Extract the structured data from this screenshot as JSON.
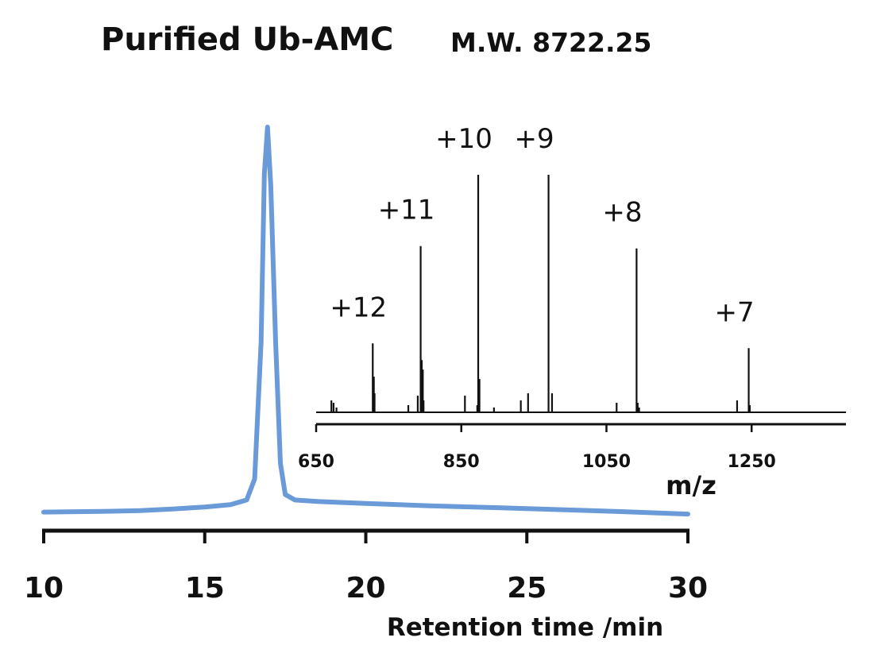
{
  "title": "Purified Ub-AMC",
  "subtitle": "M.W. 8722.25",
  "colors": {
    "chromatogram": "#6a9bd8",
    "spectrum": "#111111",
    "axis": "#111111"
  },
  "chart_data": [
    {
      "type": "line",
      "name": "chromatogram",
      "xlabel": "Retention time /min",
      "ylabel": "",
      "xlim": [
        10,
        30
      ],
      "ylim": [
        0,
        100
      ],
      "xticks": [
        10,
        15,
        20,
        25,
        30
      ],
      "xtick_labels": [
        "10",
        "15",
        "20",
        "25",
        "30"
      ],
      "series": [
        {
          "x": [
            10,
            11,
            12,
            13,
            14,
            15,
            15.8,
            16.3,
            16.55,
            16.75,
            16.85,
            16.95,
            17.05,
            17.2,
            17.35,
            17.5,
            17.8,
            18.5,
            20,
            22,
            25,
            28,
            30
          ],
          "y": [
            1.5,
            1.6,
            1.7,
            1.9,
            2.3,
            2.8,
            3.4,
            4.6,
            10,
            45,
            88,
            100,
            85,
            45,
            14,
            6,
            4.6,
            4.2,
            3.7,
            3.1,
            2.4,
            1.6,
            1.0
          ]
        }
      ]
    },
    {
      "type": "line",
      "name": "mass-spectrum-inset",
      "xlabel": "m/z",
      "ylabel": "",
      "xlim": [
        650,
        1380
      ],
      "ylim": [
        0,
        100
      ],
      "xticks": [
        650,
        850,
        1050,
        1250
      ],
      "xtick_labels": [
        "650",
        "850",
        "1050",
        "1250"
      ],
      "peaks": [
        {
          "mz": 671,
          "intensity": 5
        },
        {
          "mz": 674,
          "intensity": 4
        },
        {
          "mz": 678,
          "intensity": 2
        },
        {
          "mz": 728.0,
          "intensity": 29
        },
        {
          "mz": 729.5,
          "intensity": 15
        },
        {
          "mz": 730.5,
          "intensity": 8
        },
        {
          "mz": 777,
          "intensity": 3
        },
        {
          "mz": 790,
          "intensity": 7
        },
        {
          "mz": 794.0,
          "intensity": 70
        },
        {
          "mz": 795.5,
          "intensity": 22
        },
        {
          "mz": 797,
          "intensity": 18
        },
        {
          "mz": 798,
          "intensity": 5
        },
        {
          "mz": 855,
          "intensity": 7
        },
        {
          "mz": 872,
          "intensity": 3
        },
        {
          "mz": 873.3,
          "intensity": 100
        },
        {
          "mz": 875,
          "intensity": 14
        },
        {
          "mz": 895,
          "intensity": 2
        },
        {
          "mz": 932,
          "intensity": 5
        },
        {
          "mz": 942,
          "intensity": 8
        },
        {
          "mz": 970.2,
          "intensity": 100
        },
        {
          "mz": 975,
          "intensity": 8
        },
        {
          "mz": 1064,
          "intensity": 4
        },
        {
          "mz": 1091.5,
          "intensity": 69
        },
        {
          "mz": 1093,
          "intensity": 4
        },
        {
          "mz": 1095,
          "intensity": 2
        },
        {
          "mz": 1230,
          "intensity": 5
        },
        {
          "mz": 1246.0,
          "intensity": 27
        },
        {
          "mz": 1247.5,
          "intensity": 3
        }
      ],
      "annotations": [
        {
          "text": "+12",
          "mz": 728.0,
          "intensity": 29
        },
        {
          "text": "+11",
          "mz": 794.0,
          "intensity": 70
        },
        {
          "text": "+10",
          "mz": 873.3,
          "intensity": 100
        },
        {
          "text": "+9",
          "mz": 970.2,
          "intensity": 100
        },
        {
          "text": "+8",
          "mz": 1091.5,
          "intensity": 69
        },
        {
          "text": "+7",
          "mz": 1246.0,
          "intensity": 27
        }
      ]
    }
  ]
}
